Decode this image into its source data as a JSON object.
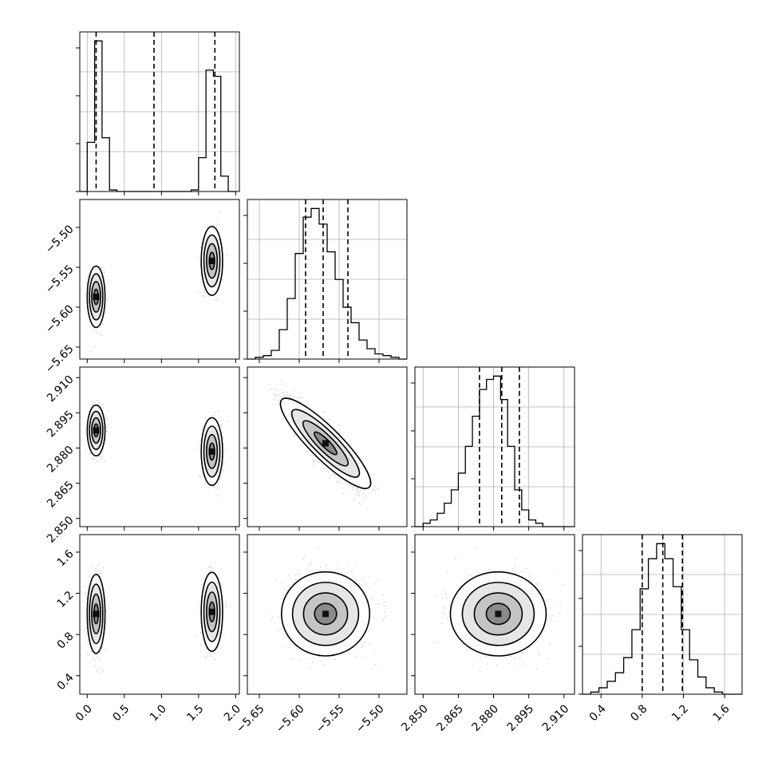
{
  "chart_data": {
    "type": "corner",
    "title": "",
    "parameters": [
      {
        "index": 0,
        "range": [
          -0.1,
          2.05
        ],
        "ticks": [
          "0.0",
          "0.5",
          "1.0",
          "1.5",
          "2.0"
        ],
        "tick_values": [
          0.0,
          0.5,
          1.0,
          1.5,
          2.0
        ],
        "quantiles": [
          0.12,
          0.9,
          1.72
        ]
      },
      {
        "index": 1,
        "range": [
          -5.665,
          -5.465
        ],
        "ticks": [
          "−5.65",
          "−5.60",
          "−5.55",
          "−5.50"
        ],
        "tick_values": [
          -5.65,
          -5.6,
          -5.55,
          -5.5
        ],
        "quantiles": [
          -5.592,
          -5.57,
          -5.539
        ]
      },
      {
        "index": 2,
        "range": [
          2.8465,
          2.9145
        ],
        "ticks": [
          "2.850",
          "2.865",
          "2.880",
          "2.895",
          "2.910"
        ],
        "tick_values": [
          2.85,
          2.865,
          2.88,
          2.895,
          2.91
        ],
        "quantiles": [
          2.874,
          2.8835,
          2.891
        ]
      },
      {
        "index": 3,
        "range": [
          0.22,
          1.77
        ],
        "ticks": [
          "0.4",
          "0.8",
          "1.2",
          "1.6"
        ],
        "tick_values": [
          0.4,
          0.8,
          1.2,
          1.6
        ],
        "quantiles": [
          0.8,
          1.0,
          1.19
        ]
      }
    ],
    "histograms": [
      {
        "param": 0,
        "bin_edges": [
          -0.1,
          0.0,
          0.1,
          0.2,
          0.3,
          0.4,
          0.5,
          0.6,
          0.7,
          0.8,
          0.9,
          1.0,
          1.1,
          1.2,
          1.3,
          1.4,
          1.5,
          1.6,
          1.7,
          1.8,
          1.9,
          2.0
        ],
        "counts": [
          0,
          0.32,
          0.98,
          0.35,
          0.01,
          0,
          0,
          0,
          0,
          0,
          0,
          0,
          0,
          0,
          0,
          0.01,
          0.22,
          0.79,
          0.75,
          0.1,
          0
        ]
      },
      {
        "param": 1,
        "bin_edges": [
          -5.665,
          -5.655,
          -5.645,
          -5.635,
          -5.625,
          -5.615,
          -5.605,
          -5.595,
          -5.585,
          -5.575,
          -5.565,
          -5.555,
          -5.545,
          -5.535,
          -5.525,
          -5.515,
          -5.505,
          -5.495,
          -5.485,
          -5.475,
          -5.465
        ],
        "counts": [
          0,
          0.01,
          0.02,
          0.05,
          0.17,
          0.35,
          0.61,
          0.82,
          0.87,
          0.78,
          0.62,
          0.46,
          0.3,
          0.21,
          0.11,
          0.06,
          0.03,
          0.02,
          0.01,
          0.0
        ]
      },
      {
        "param": 2,
        "bin_edges": [
          2.8465,
          2.85,
          2.853,
          2.856,
          2.859,
          2.862,
          2.865,
          2.868,
          2.871,
          2.874,
          2.877,
          2.88,
          2.883,
          2.886,
          2.889,
          2.892,
          2.895,
          2.898,
          2.901,
          2.904,
          2.907,
          2.9145
        ],
        "counts": [
          0,
          0.01,
          0.02,
          0.04,
          0.07,
          0.11,
          0.16,
          0.24,
          0.33,
          0.41,
          0.44,
          0.45,
          0.38,
          0.24,
          0.11,
          0.05,
          0.02,
          0.01,
          0.0,
          0.0,
          0
        ]
      },
      {
        "param": 3,
        "bin_edges": [
          0.22,
          0.3,
          0.38,
          0.46,
          0.54,
          0.62,
          0.7,
          0.78,
          0.86,
          0.94,
          1.02,
          1.1,
          1.18,
          1.26,
          1.34,
          1.42,
          1.5,
          1.58,
          1.66,
          1.77
        ],
        "counts": [
          0,
          0.01,
          0.03,
          0.06,
          0.1,
          0.17,
          0.3,
          0.49,
          0.63,
          0.7,
          0.63,
          0.5,
          0.3,
          0.16,
          0.08,
          0.03,
          0.01,
          0.0,
          0
        ]
      }
    ],
    "pairs": [
      {
        "x_param": 0,
        "y_param": 1,
        "clusters": [
          {
            "mean": [
              0.12,
              -5.587
            ],
            "sd": [
              0.05,
              0.016
            ],
            "rho": 0.0,
            "weight": 0.5
          },
          {
            "mean": [
              1.68,
              -5.542
            ],
            "sd": [
              0.06,
              0.018
            ],
            "rho": 0.0,
            "weight": 0.5
          }
        ]
      },
      {
        "x_param": 0,
        "y_param": 2,
        "clusters": [
          {
            "mean": [
              0.12,
              2.8875
            ],
            "sd": [
              0.05,
              0.0045
            ],
            "rho": 0.0,
            "weight": 0.5
          },
          {
            "mean": [
              1.68,
              2.8785
            ],
            "sd": [
              0.06,
              0.006
            ],
            "rho": 0.0,
            "weight": 0.5
          }
        ]
      },
      {
        "x_param": 0,
        "y_param": 3,
        "clusters": [
          {
            "mean": [
              0.12,
              1.0
            ],
            "sd": [
              0.05,
              0.16
            ],
            "rho": 0.0,
            "weight": 0.5
          },
          {
            "mean": [
              1.68,
              1.02
            ],
            "sd": [
              0.06,
              0.16
            ],
            "rho": 0.0,
            "weight": 0.5
          }
        ]
      },
      {
        "x_param": 1,
        "y_param": 2,
        "clusters": [
          {
            "mean": [
              -5.567,
              2.882
            ],
            "sd": [
              0.022,
              0.0085
            ],
            "rho": -0.88,
            "weight": 1.0
          }
        ]
      },
      {
        "x_param": 1,
        "y_param": 3,
        "clusters": [
          {
            "mean": [
              -5.567,
              1.0
            ],
            "sd": [
              0.023,
              0.17
            ],
            "rho": 0.0,
            "weight": 1.0
          }
        ]
      },
      {
        "x_param": 2,
        "y_param": 3,
        "clusters": [
          {
            "mean": [
              2.882,
              1.0
            ],
            "sd": [
              0.0085,
              0.17
            ],
            "rho": 0.0,
            "weight": 1.0
          }
        ]
      }
    ],
    "contour_levels_sigma": [
      0.5,
      1.0,
      1.5,
      2.0
    ],
    "xlabel": "",
    "ylabel": "",
    "grid": true,
    "legend": "none"
  }
}
